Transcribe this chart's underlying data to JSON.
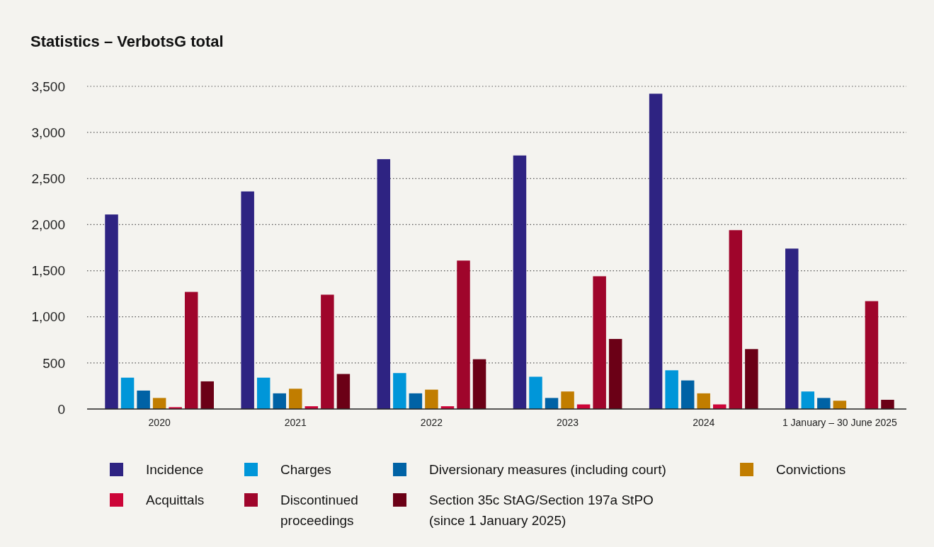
{
  "chart_data": {
    "type": "bar",
    "title": "Statistics – VerbotsG total",
    "categories": [
      "2020",
      "2021",
      "2022",
      "2023",
      "2024",
      "1 January – 30 June 2025"
    ],
    "series": [
      {
        "name": "Incidence",
        "color": "#2e2382",
        "values": [
          2110,
          2360,
          2710,
          2750,
          3420,
          1740
        ]
      },
      {
        "name": "Charges",
        "color": "#0096d9",
        "values": [
          340,
          340,
          390,
          350,
          420,
          190
        ]
      },
      {
        "name": "Diversionary measures (including court)",
        "color": "#0062a5",
        "values": [
          200,
          170,
          170,
          120,
          310,
          120
        ]
      },
      {
        "name": "Convictions",
        "color": "#c17d00",
        "values": [
          120,
          220,
          210,
          190,
          170,
          90
        ]
      },
      {
        "name": "Acquittals",
        "color": "#cc0538",
        "values": [
          20,
          30,
          30,
          50,
          50,
          null
        ]
      },
      {
        "name": "Discontinued proceedings",
        "color": "#9f052b",
        "values": [
          1270,
          1240,
          1610,
          1440,
          1940,
          1170
        ]
      },
      {
        "name": "Section 35c StAG/Section 197a StPO (since 1 January 2025)",
        "color": "#6b0016",
        "values": [
          300,
          380,
          540,
          760,
          650,
          100
        ]
      }
    ],
    "ylim": [
      0,
      3500
    ],
    "yticks": [
      0,
      500,
      {
        "value": 1000,
        "label": "1,000"
      },
      {
        "value": 1500,
        "label": "1,500"
      },
      {
        "value": 2000,
        "label": "2,000"
      },
      {
        "value": 2500,
        "label": "2,500"
      },
      {
        "value": 3000,
        "label": "3,000"
      },
      {
        "value": 3500,
        "label": "3,500"
      }
    ],
    "grid": "y",
    "legend": "bottom"
  }
}
